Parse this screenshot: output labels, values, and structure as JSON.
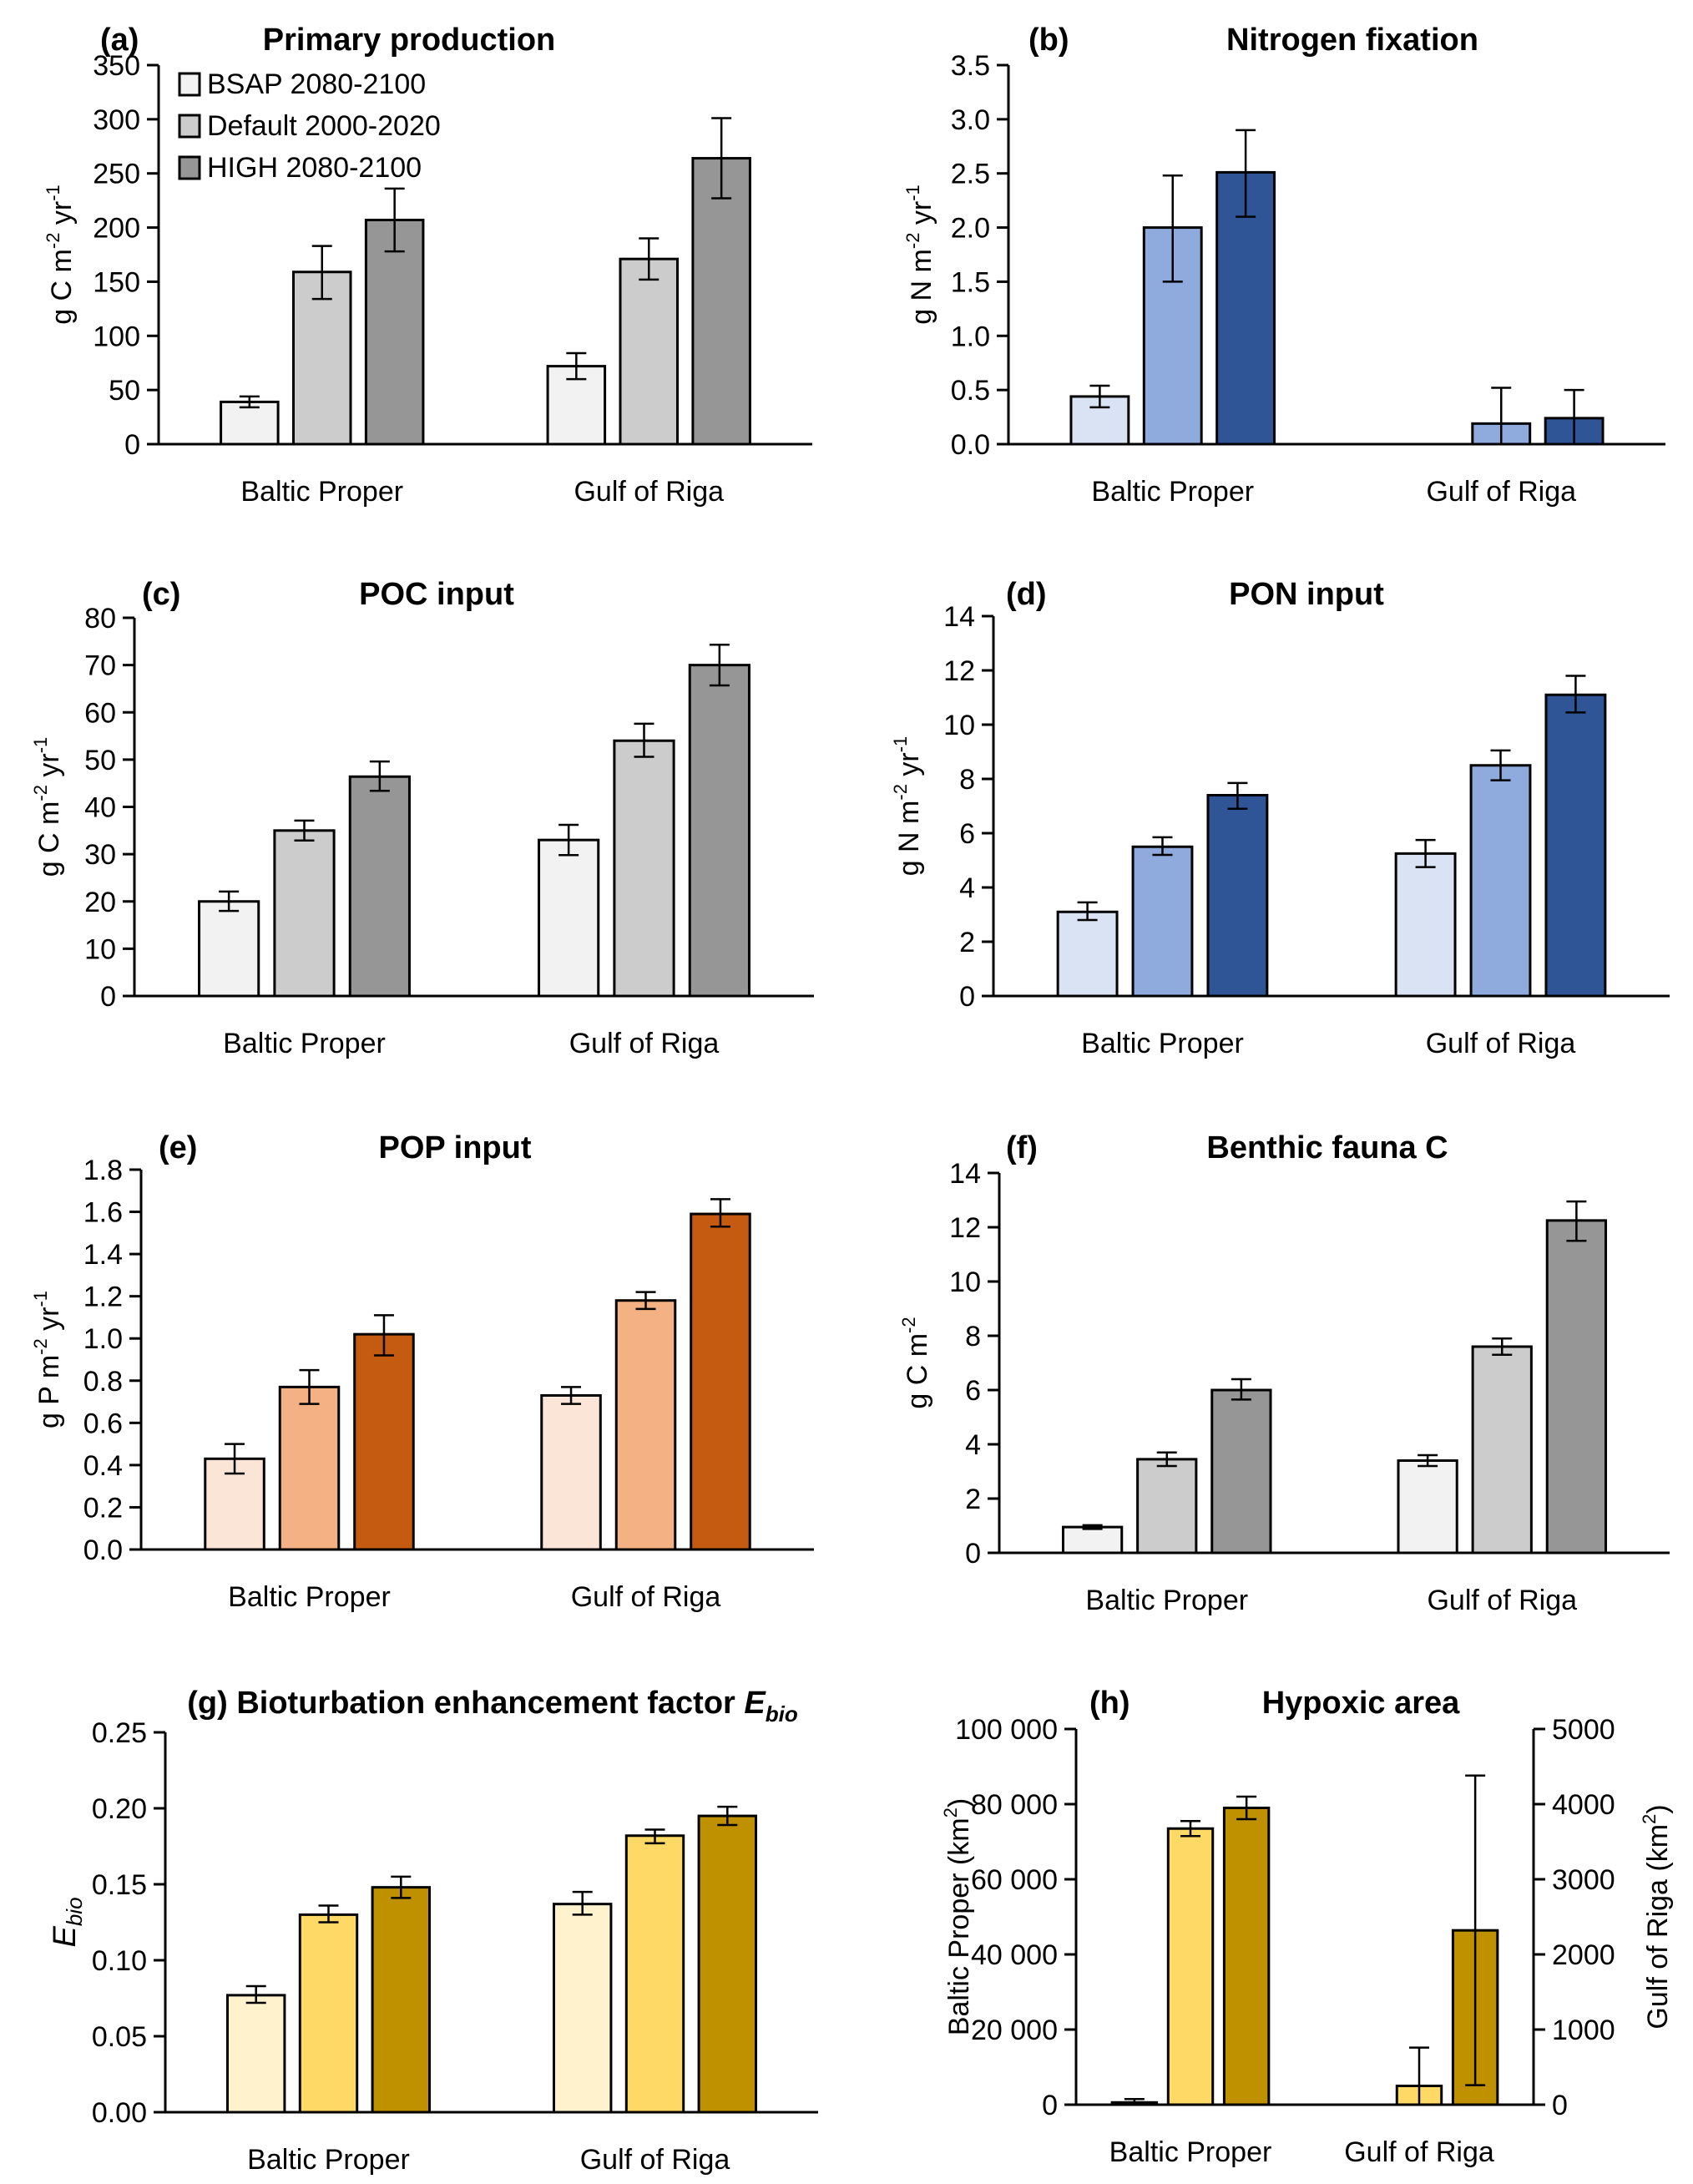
{
  "figure": {
    "legend": {
      "entries": [
        "BSAP 2080-2100",
        "Default 2000-2020",
        "HIGH 2080-2100"
      ],
      "placement": "top-left (inside panel a)"
    }
  },
  "chart_data": [
    {
      "id": "a",
      "type": "bar",
      "panel_label": "(a)",
      "title": "Primary production",
      "ylabel": "g C m^-2 yr^-1",
      "ylabel_parts": {
        "base": "g C m",
        "sup1": "-2",
        "mid": " yr",
        "sup2": "-1"
      },
      "ylim": [
        0,
        350
      ],
      "yticks": [
        0,
        50,
        100,
        150,
        200,
        250,
        300,
        350
      ],
      "ytick_labels": [
        "0",
        "50",
        "100",
        "150",
        "200",
        "250",
        "300",
        "350"
      ],
      "categories": [
        "Baltic Proper",
        "Gulf of Riga"
      ],
      "colors": [
        "#f2f2f2",
        "#cccccc",
        "#969696"
      ],
      "series": [
        {
          "name": "BSAP 2080-2100",
          "values": [
            39,
            72
          ],
          "err_low": [
            34,
            60
          ],
          "err_high": [
            44,
            84
          ]
        },
        {
          "name": "Default 2000-2020",
          "values": [
            159,
            171
          ],
          "err_low": [
            134,
            152
          ],
          "err_high": [
            183,
            190
          ]
        },
        {
          "name": "HIGH 2080-2100",
          "values": [
            207,
            264
          ],
          "err_low": [
            178,
            227
          ],
          "err_high": [
            236,
            301
          ]
        }
      ],
      "legend": true
    },
    {
      "id": "b",
      "type": "bar",
      "panel_label": "(b)",
      "title": "Nitrogen fixation",
      "ylabel": "g N m^-2 yr^-1",
      "ylabel_parts": {
        "base": "g N m",
        "sup1": "-2",
        "mid": " yr",
        "sup2": "-1"
      },
      "ylim": [
        0,
        3.5
      ],
      "yticks": [
        0,
        0.5,
        1.0,
        1.5,
        2.0,
        2.5,
        3.0,
        3.5
      ],
      "ytick_labels": [
        "0.0",
        "0.5",
        "1.0",
        "1.5",
        "2.0",
        "2.5",
        "3.0",
        "3.5"
      ],
      "categories": [
        "Baltic Proper",
        "Gulf of Riga"
      ],
      "colors": [
        "#dae3f3",
        "#8faadc",
        "#2f5597"
      ],
      "series": [
        {
          "name": "BSAP 2080-2100",
          "values": [
            0.44,
            0
          ],
          "err_low": [
            0.34,
            null
          ],
          "err_high": [
            0.54,
            null
          ]
        },
        {
          "name": "Default 2000-2020",
          "values": [
            2.0,
            0.19
          ],
          "err_low": [
            1.5,
            0
          ],
          "err_high": [
            2.48,
            0.52
          ]
        },
        {
          "name": "HIGH 2080-2100",
          "values": [
            2.51,
            0.24
          ],
          "err_low": [
            2.1,
            0
          ],
          "err_high": [
            2.9,
            0.5
          ]
        }
      ]
    },
    {
      "id": "c",
      "type": "bar",
      "panel_label": "(c)",
      "title": "POC input",
      "ylabel": "g C m^-2 yr^-1",
      "ylabel_parts": {
        "base": "g C m",
        "sup1": "-2",
        "mid": " yr",
        "sup2": "-1"
      },
      "ylim": [
        0,
        80
      ],
      "yticks": [
        0,
        10,
        20,
        30,
        40,
        50,
        60,
        70,
        80
      ],
      "ytick_labels": [
        "0",
        "10",
        "20",
        "30",
        "40",
        "50",
        "60",
        "70",
        "80"
      ],
      "categories": [
        "Baltic Proper",
        "Gulf of Riga"
      ],
      "colors": [
        "#f2f2f2",
        "#cccccc",
        "#969696"
      ],
      "series": [
        {
          "name": "BSAP 2080-2100",
          "values": [
            20,
            33
          ],
          "err_low": [
            18,
            29.8
          ],
          "err_high": [
            22.1,
            36.2
          ]
        },
        {
          "name": "Default 2000-2020",
          "values": [
            35,
            54
          ],
          "err_low": [
            32.9,
            50.6
          ],
          "err_high": [
            37.1,
            57.6
          ]
        },
        {
          "name": "HIGH 2080-2100",
          "values": [
            46.4,
            70
          ],
          "err_low": [
            43.4,
            65.7
          ],
          "err_high": [
            49.6,
            74.3
          ]
        }
      ]
    },
    {
      "id": "d",
      "type": "bar",
      "panel_label": "(d)",
      "title": "PON input",
      "ylabel": "g N m^-2 yr^-1",
      "ylabel_parts": {
        "base": "g N m",
        "sup1": "-2",
        "mid": " yr",
        "sup2": "-1"
      },
      "ylim": [
        0,
        14
      ],
      "yticks": [
        0,
        2,
        4,
        6,
        8,
        10,
        12,
        14
      ],
      "ytick_labels": [
        "0",
        "2",
        "4",
        "6",
        "8",
        "10",
        "12",
        "14"
      ],
      "categories": [
        "Baltic Proper",
        "Gulf of Riga"
      ],
      "colors": [
        "#dae3f3",
        "#8faadc",
        "#2f5597"
      ],
      "series": [
        {
          "name": "BSAP 2080-2100",
          "values": [
            3.1,
            5.25
          ],
          "err_low": [
            2.8,
            4.75
          ],
          "err_high": [
            3.45,
            5.75
          ]
        },
        {
          "name": "Default 2000-2020",
          "values": [
            5.5,
            8.5
          ],
          "err_low": [
            5.2,
            7.95
          ],
          "err_high": [
            5.85,
            9.05
          ]
        },
        {
          "name": "HIGH 2080-2100",
          "values": [
            7.4,
            11.1
          ],
          "err_low": [
            6.9,
            10.45
          ],
          "err_high": [
            7.85,
            11.8
          ]
        }
      ]
    },
    {
      "id": "e",
      "type": "bar",
      "panel_label": "(e)",
      "title": "POP input",
      "ylabel": "g P m^-2 yr^-1",
      "ylabel_parts": {
        "base": "g P m",
        "sup1": "-2",
        "mid": " yr",
        "sup2": "-1"
      },
      "ylim": [
        0,
        1.8
      ],
      "yticks": [
        0,
        0.2,
        0.4,
        0.6,
        0.8,
        1.0,
        1.2,
        1.4,
        1.6,
        1.8
      ],
      "ytick_labels": [
        "0.0",
        "0.2",
        "0.4",
        "0.6",
        "0.8",
        "1.0",
        "1.2",
        "1.4",
        "1.6",
        "1.8"
      ],
      "categories": [
        "Baltic Proper",
        "Gulf of Riga"
      ],
      "colors": [
        "#fbe5d6",
        "#f4b183",
        "#c55a11"
      ],
      "series": [
        {
          "name": "BSAP 2080-2100",
          "values": [
            0.43,
            0.73
          ],
          "err_low": [
            0.36,
            0.69
          ],
          "err_high": [
            0.5,
            0.77
          ]
        },
        {
          "name": "Default 2000-2020",
          "values": [
            0.77,
            1.18
          ],
          "err_low": [
            0.69,
            1.14
          ],
          "err_high": [
            0.85,
            1.22
          ]
        },
        {
          "name": "HIGH 2080-2100",
          "values": [
            1.02,
            1.59
          ],
          "err_low": [
            0.92,
            1.53
          ],
          "err_high": [
            1.11,
            1.66
          ]
        }
      ]
    },
    {
      "id": "f",
      "type": "bar",
      "panel_label": "(f)",
      "title": "Benthic fauna C",
      "ylabel": "g C m^-2",
      "ylabel_parts": {
        "base": "g C m",
        "sup1": "-2",
        "mid": "",
        "sup2": ""
      },
      "ylim": [
        0,
        14
      ],
      "yticks": [
        0,
        2,
        4,
        6,
        8,
        10,
        12,
        14
      ],
      "ytick_labels": [
        "0",
        "2",
        "4",
        "6",
        "8",
        "10",
        "12",
        "14"
      ],
      "categories": [
        "Baltic Proper",
        "Gulf of Riga"
      ],
      "colors": [
        "#f2f2f2",
        "#cccccc",
        "#969696"
      ],
      "series": [
        {
          "name": "BSAP 2080-2100",
          "values": [
            0.95,
            3.4
          ],
          "err_low": [
            0.88,
            3.2
          ],
          "err_high": [
            1.02,
            3.6
          ]
        },
        {
          "name": "Default 2000-2020",
          "values": [
            3.45,
            7.6
          ],
          "err_low": [
            3.2,
            7.3
          ],
          "err_high": [
            3.7,
            7.9
          ]
        },
        {
          "name": "HIGH 2080-2100",
          "values": [
            6.0,
            12.25
          ],
          "err_low": [
            5.65,
            11.5
          ],
          "err_high": [
            6.4,
            12.95
          ]
        }
      ]
    },
    {
      "id": "g",
      "type": "bar",
      "panel_label": "(g)",
      "title": "Bioturbation enhancement factor",
      "title_italic": "E",
      "title_italic_sub": "bio",
      "ylabel": "E_bio",
      "ylabel_parts": {
        "italic": "E",
        "sub": "bio"
      },
      "ylim": [
        0,
        0.25
      ],
      "yticks": [
        0,
        0.05,
        0.1,
        0.15,
        0.2,
        0.25
      ],
      "ytick_labels": [
        "0.00",
        "0.05",
        "0.10",
        "0.15",
        "0.20",
        "0.25"
      ],
      "categories": [
        "Baltic Proper",
        "Gulf of Riga"
      ],
      "colors": [
        "#fff2cc",
        "#ffd966",
        "#bf9000"
      ],
      "series": [
        {
          "name": "BSAP 2080-2100",
          "values": [
            0.077,
            0.137
          ],
          "err_low": [
            0.072,
            0.13
          ],
          "err_high": [
            0.083,
            0.145
          ]
        },
        {
          "name": "Default 2000-2020",
          "values": [
            0.13,
            0.182
          ],
          "err_low": [
            0.125,
            0.177
          ],
          "err_high": [
            0.136,
            0.186
          ]
        },
        {
          "name": "HIGH 2080-2100",
          "values": [
            0.148,
            0.195
          ],
          "err_low": [
            0.141,
            0.189
          ],
          "err_high": [
            0.155,
            0.201
          ]
        }
      ]
    },
    {
      "id": "h",
      "type": "bar",
      "panel_label": "(h)",
      "title": "Hypoxic area",
      "ylabel": "Baltic Proper (km^2)",
      "ylabel_parts": {
        "base": "Baltic Proper (km",
        "sup1": "2",
        "mid": ")",
        "sup2": ""
      },
      "ylabel_right": "Gulf of Riga (km^2)",
      "ylabel_right_parts": {
        "base": "Gulf of Riga (km",
        "sup1": "2",
        "mid": ")",
        "sup2": ""
      },
      "ylim": [
        0,
        100000
      ],
      "yticks": [
        0,
        20000,
        40000,
        60000,
        80000,
        100000
      ],
      "ytick_labels": [
        "0",
        "20 000",
        "40 000",
        "60 000",
        "80 000",
        "100 000"
      ],
      "ylim_right": [
        0,
        5000
      ],
      "yticks_right": [
        0,
        1000,
        2000,
        3000,
        4000,
        5000
      ],
      "ytick_labels_right": [
        "0",
        "1000",
        "2000",
        "3000",
        "4000",
        "5000"
      ],
      "categories": [
        "Baltic Proper",
        "Gulf of Riga"
      ],
      "category_axis": [
        "left",
        "right"
      ],
      "colors": [
        "#fff2cc",
        "#ffd966",
        "#bf9000"
      ],
      "series": [
        {
          "name": "BSAP 2080-2100",
          "values": [
            600,
            0
          ],
          "err_low": [
            0,
            null
          ],
          "err_high": [
            1500,
            null
          ]
        },
        {
          "name": "Default 2000-2020",
          "values": [
            73500,
            250
          ],
          "err_low": [
            71500,
            0
          ],
          "err_high": [
            75500,
            760
          ]
        },
        {
          "name": "HIGH 2080-2100",
          "values": [
            79000,
            2320
          ],
          "err_low": [
            76000,
            260
          ],
          "err_high": [
            82000,
            4380
          ]
        }
      ]
    }
  ]
}
